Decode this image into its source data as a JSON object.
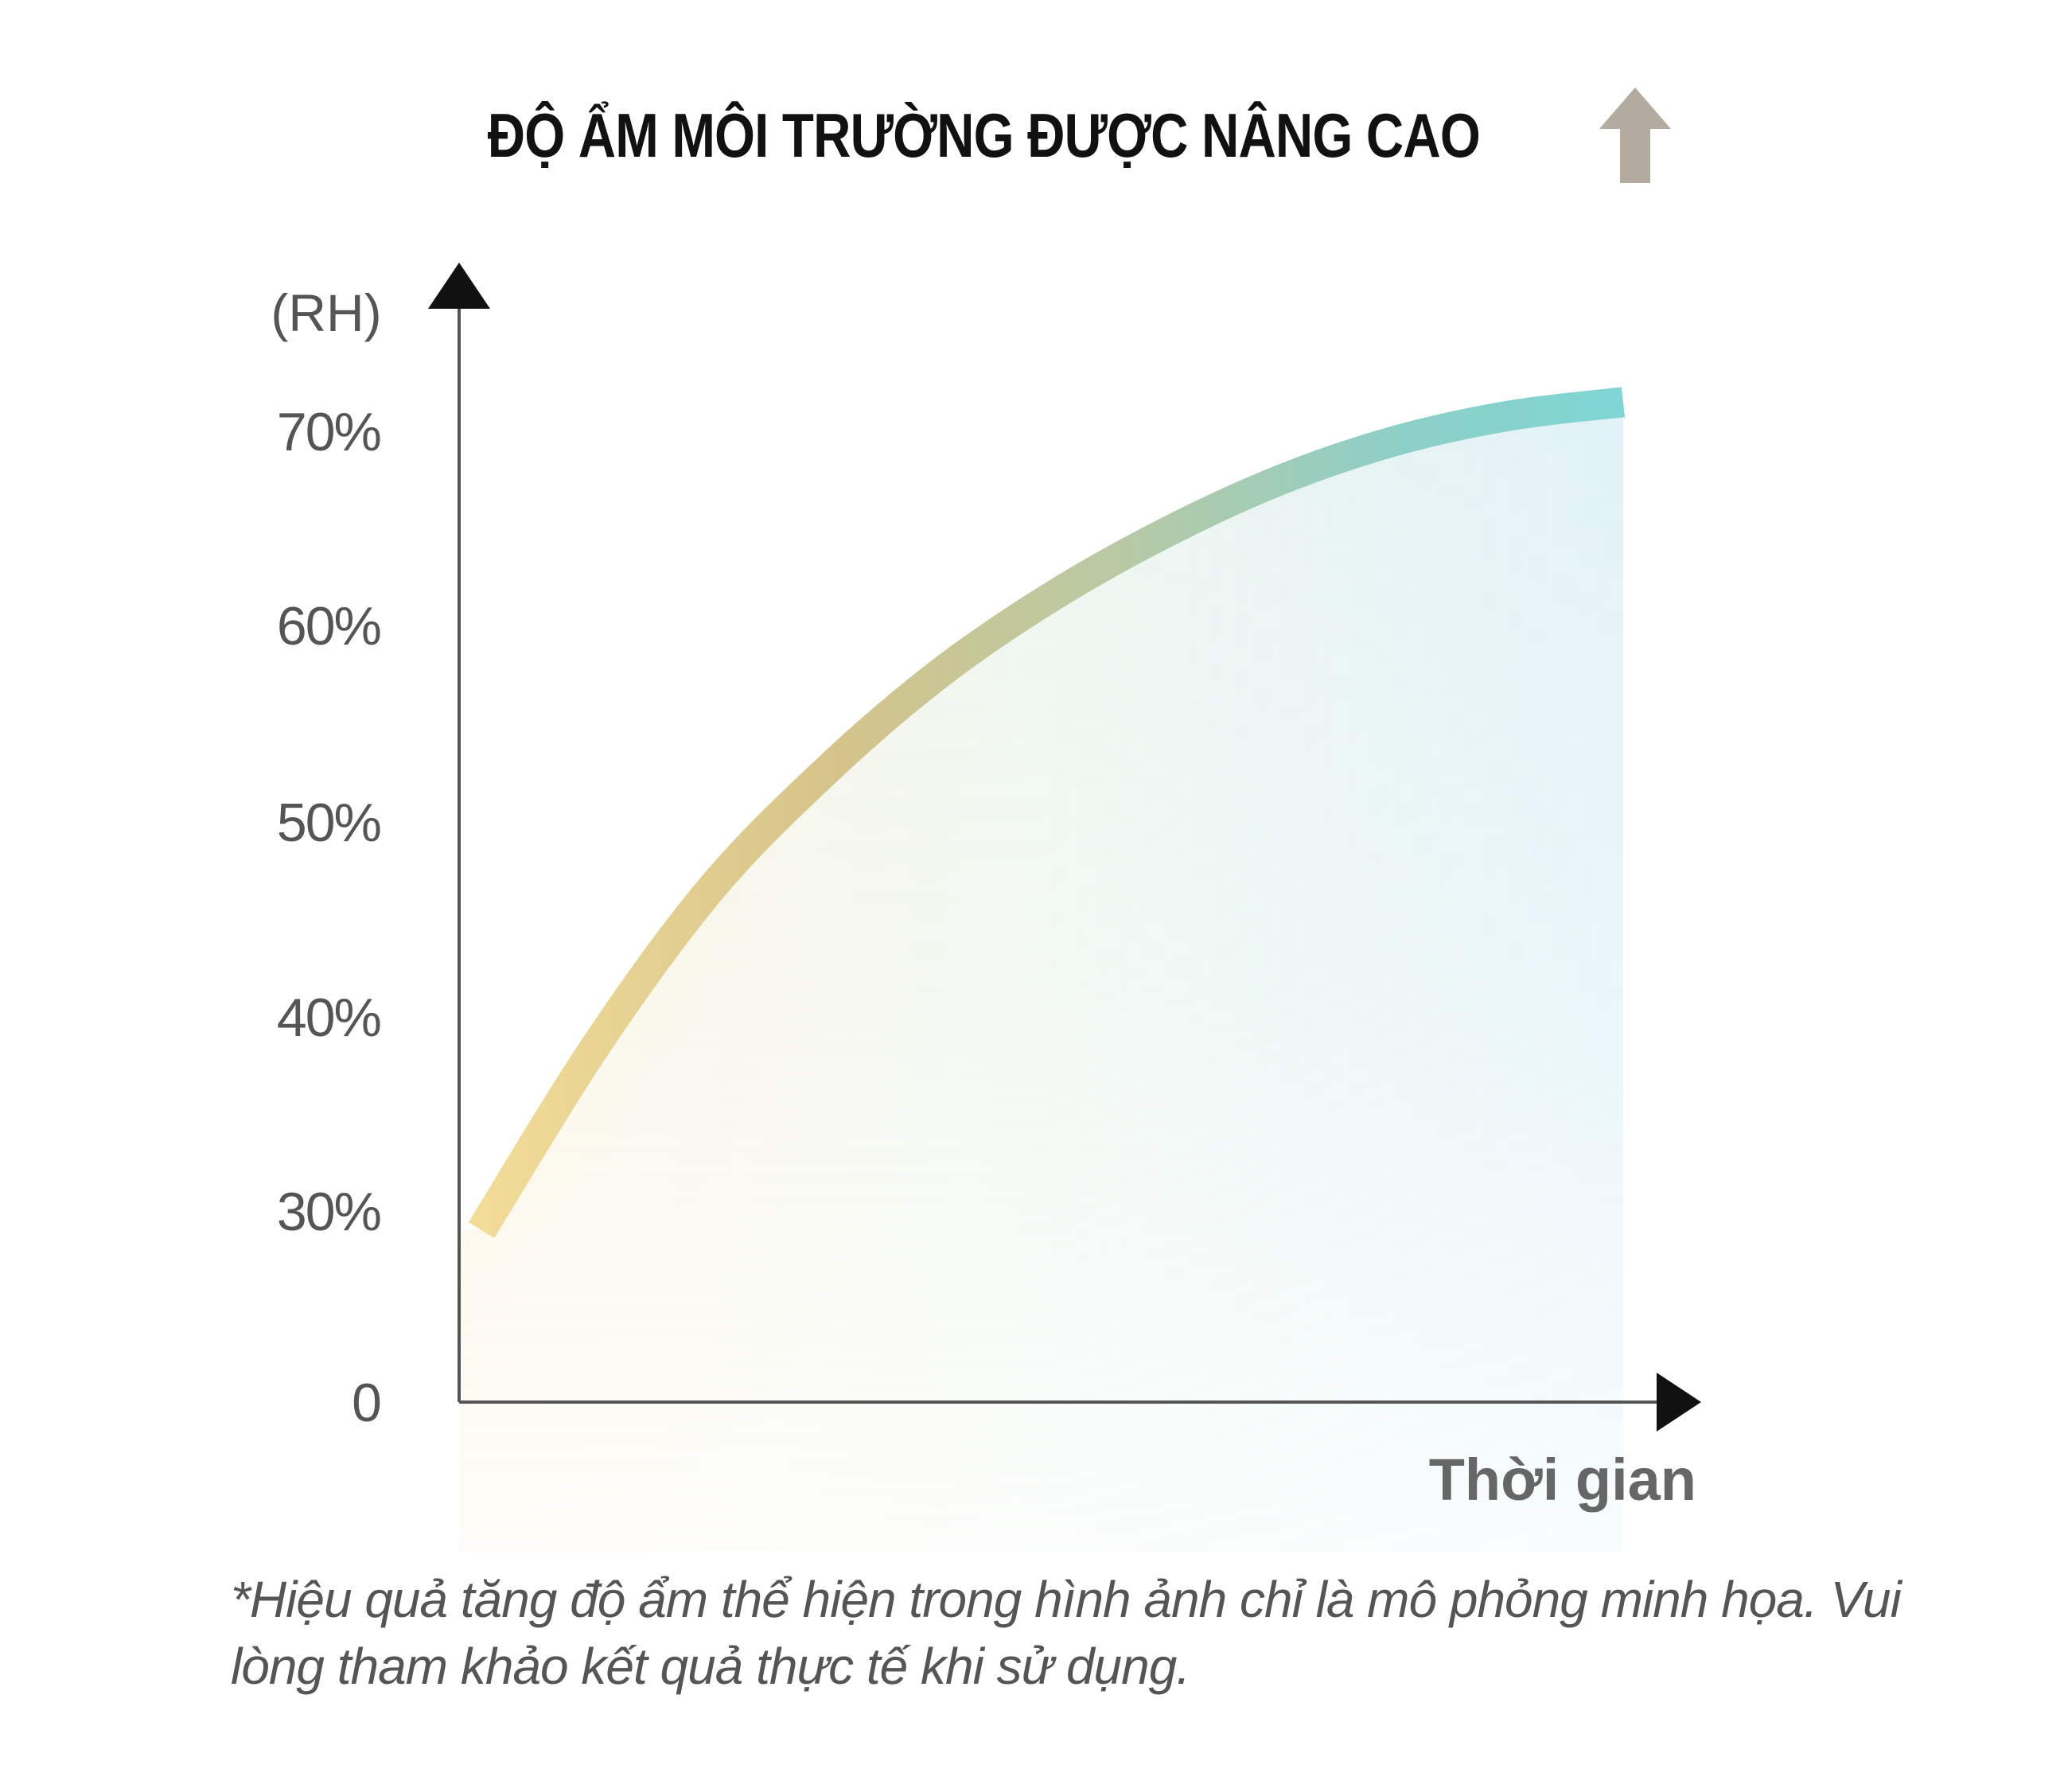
{
  "chart_data": {
    "type": "line",
    "title": "ĐỘ ẨM MÔI TRƯỜNG ĐƯỢC NÂNG CAO",
    "ylabel": "(RH)",
    "xlabel": "Thời gian",
    "ylim": [
      0,
      70
    ],
    "yticks": [
      {
        "value": 0,
        "label": "0"
      },
      {
        "value": 30,
        "label": "30%"
      },
      {
        "value": 40,
        "label": "40%"
      },
      {
        "value": 50,
        "label": "50%"
      },
      {
        "value": 60,
        "label": "60%"
      },
      {
        "value": 70,
        "label": "70%"
      }
    ],
    "series": [
      {
        "x": [
          0,
          0.1,
          0.2,
          0.3,
          0.4,
          0.5,
          0.6,
          0.7,
          0.8,
          0.9,
          1.0
        ],
        "values": [
          27,
          38.5,
          46.5,
          52.5,
          57.5,
          61.5,
          64.8,
          67.5,
          69.5,
          70.8,
          71.5
        ]
      }
    ],
    "gradient_colors": [
      "#f2dc98",
      "#d6c48a",
      "#b9c9a3",
      "#8ecfc7",
      "#7fd6d4"
    ],
    "grid": false,
    "legend": "none"
  },
  "title_icon": "up-arrow-icon",
  "title_icon_color": "#b3aaa0",
  "footnote": "*Hiệu quả tăng độ ẩm thể hiện trong hình ảnh chỉ là mô phỏng minh họa. Vui lòng tham khảo kết quả thực tế khi sử dụng."
}
